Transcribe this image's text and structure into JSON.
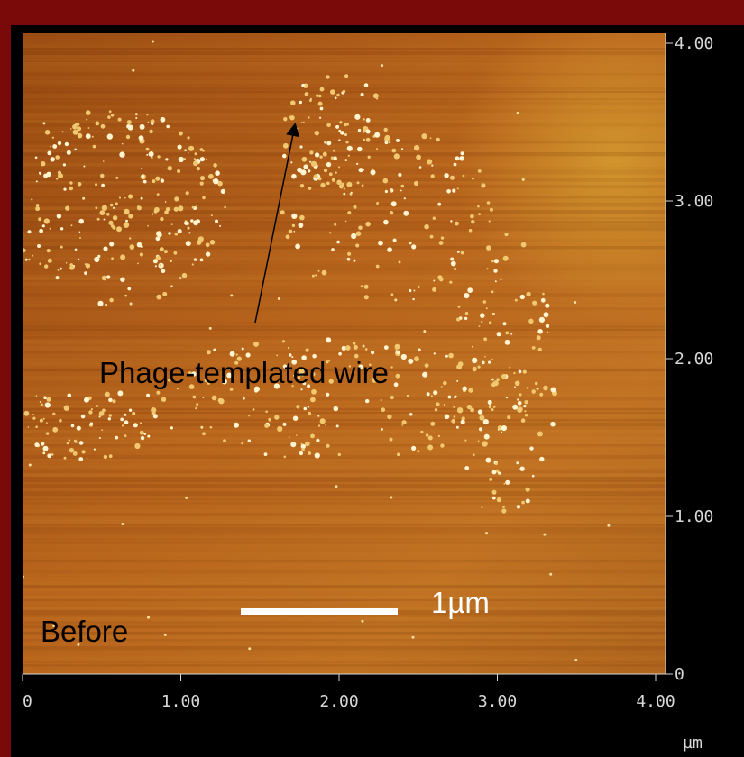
{
  "image": {
    "x_ticks": [
      "0",
      "1.00",
      "2.00",
      "3.00",
      "4.00"
    ],
    "y_ticks": [
      "0",
      "1.00",
      "2.00",
      "3.00",
      "4.00"
    ],
    "unit": "µm",
    "annotations": {
      "arrow_label": "Phage-templated wire",
      "scale_bar": "1µm",
      "panel": "Before"
    }
  }
}
